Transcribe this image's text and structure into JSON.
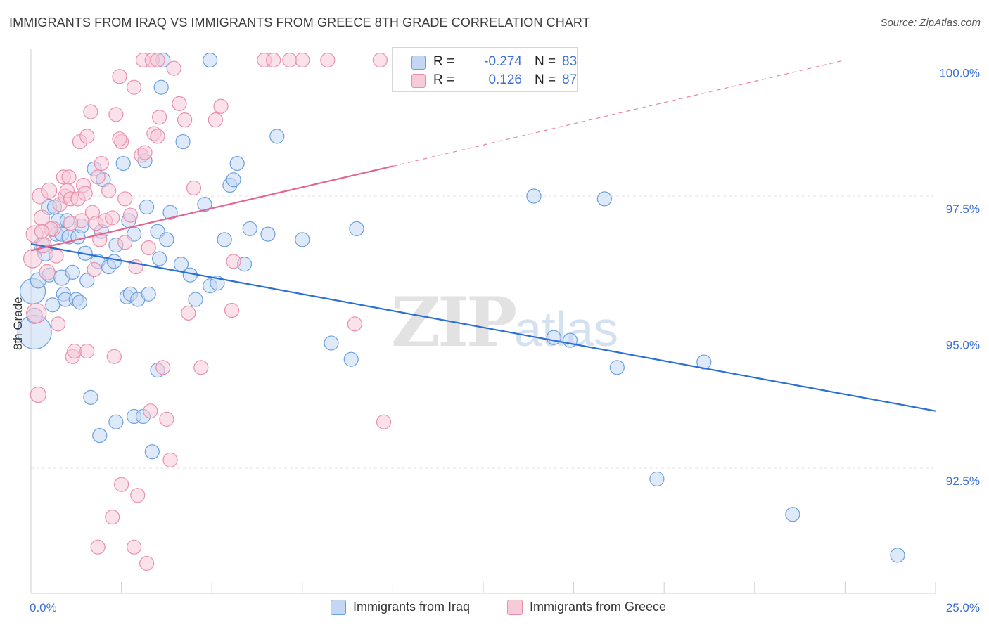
{
  "title": "IMMIGRANTS FROM IRAQ VS IMMIGRANTS FROM GREECE 8TH GRADE CORRELATION CHART",
  "source": "Source: ZipAtlas.com",
  "watermark": {
    "zip": "ZIP",
    "atlas": "atlas"
  },
  "colors": {
    "iraq_fill": "#c3d7f5",
    "iraq_stroke": "#6c9fe0",
    "iraq_line": "#2a6fd4",
    "greece_fill": "#f8c9d7",
    "greece_stroke": "#ea8fab",
    "greece_line": "#e4648f",
    "tick_text": "#3b6fd6",
    "grid": "#e3e3e3"
  },
  "legend": {
    "rows": [
      {
        "r_label": "R = ",
        "r_value": "-0.274",
        "n_label": "N = ",
        "n_value": "83"
      },
      {
        "r_label": "R = ",
        "r_value": "0.126",
        "n_label": "N = ",
        "n_value": "87"
      }
    ]
  },
  "chart_data": {
    "type": "scatter",
    "title": "IMMIGRANTS FROM IRAQ VS IMMIGRANTS FROM GREECE 8TH GRADE CORRELATION CHART",
    "xlabel": "",
    "ylabel": "8th Grade",
    "xlim": [
      0,
      25
    ],
    "ylim": [
      90.2,
      100.2
    ],
    "x_tick_labels": {
      "0": "0.0%",
      "25": "25.0%"
    },
    "x_minor_ticks": [
      0,
      2.5,
      5,
      7.5,
      10,
      12.5,
      15,
      17.5,
      20,
      22.5,
      25
    ],
    "y_ticks": [
      92.5,
      95.0,
      97.5,
      100.0
    ],
    "y_tick_labels": [
      "92.5%",
      "95.0%",
      "97.5%",
      "100.0%"
    ],
    "grid": true,
    "legend_position": "top-center",
    "series": [
      {
        "name": "Immigrants from Iraq",
        "trend": {
          "x": [
            0,
            25
          ],
          "y": [
            96.62,
            93.55
          ],
          "dashed_extension": false
        },
        "points": [
          [
            0.05,
            95.75,
            18
          ],
          [
            0.1,
            95.0,
            24
          ],
          [
            0.1,
            95.3,
            11
          ],
          [
            0.2,
            95.95,
            11
          ],
          [
            0.3,
            96.6,
            11
          ],
          [
            0.4,
            96.45,
            11
          ],
          [
            0.5,
            97.3,
            11
          ],
          [
            0.5,
            96.05,
            10
          ],
          [
            0.6,
            95.5,
            10
          ],
          [
            0.65,
            97.3,
            10
          ],
          [
            0.7,
            96.8,
            10
          ],
          [
            0.75,
            97.05,
            10
          ],
          [
            0.85,
            96.0,
            11
          ],
          [
            0.85,
            96.8,
            10
          ],
          [
            0.9,
            95.7,
            10
          ],
          [
            0.95,
            95.6,
            10
          ],
          [
            1.0,
            97.05,
            10
          ],
          [
            1.05,
            96.75,
            10
          ],
          [
            1.15,
            96.1,
            10
          ],
          [
            1.25,
            95.6,
            10
          ],
          [
            1.3,
            96.75,
            10
          ],
          [
            1.35,
            95.55,
            10
          ],
          [
            1.4,
            96.95,
            10
          ],
          [
            1.5,
            96.45,
            10
          ],
          [
            1.55,
            95.95,
            10
          ],
          [
            1.75,
            98.0,
            10
          ],
          [
            1.85,
            96.3,
            10
          ],
          [
            1.95,
            96.85,
            10
          ],
          [
            2.0,
            97.8,
            10
          ],
          [
            2.15,
            96.2,
            10
          ],
          [
            2.3,
            96.3,
            10
          ],
          [
            2.35,
            96.6,
            10
          ],
          [
            2.55,
            98.1,
            10
          ],
          [
            2.65,
            95.65,
            10
          ],
          [
            2.7,
            97.05,
            10
          ],
          [
            2.75,
            95.7,
            10
          ],
          [
            2.85,
            96.8,
            10
          ],
          [
            2.95,
            95.6,
            10
          ],
          [
            3.15,
            98.15,
            10
          ],
          [
            3.2,
            97.3,
            10
          ],
          [
            3.25,
            95.7,
            10
          ],
          [
            3.5,
            96.85,
            10
          ],
          [
            3.55,
            96.35,
            10
          ],
          [
            3.75,
            96.7,
            10
          ],
          [
            3.85,
            97.2,
            10
          ],
          [
            4.15,
            96.25,
            10
          ],
          [
            4.2,
            98.5,
            10
          ],
          [
            4.4,
            96.05,
            10
          ],
          [
            4.55,
            95.6,
            10
          ],
          [
            4.8,
            97.35,
            10
          ],
          [
            4.95,
            95.85,
            10
          ],
          [
            5.15,
            95.9,
            10
          ],
          [
            5.35,
            96.7,
            10
          ],
          [
            5.5,
            97.7,
            10
          ],
          [
            5.6,
            97.8,
            10
          ],
          [
            5.7,
            98.1,
            10
          ],
          [
            5.9,
            96.25,
            10
          ],
          [
            6.05,
            96.9,
            10
          ],
          [
            6.55,
            96.8,
            10
          ],
          [
            6.8,
            98.6,
            10
          ],
          [
            7.5,
            96.7,
            10
          ],
          [
            8.3,
            94.8,
            10
          ],
          [
            8.85,
            94.5,
            10
          ],
          [
            9.0,
            96.9,
            10
          ],
          [
            13.9,
            97.5,
            10
          ],
          [
            14.45,
            94.9,
            10
          ],
          [
            14.9,
            94.85,
            10
          ],
          [
            15.85,
            97.45,
            10
          ],
          [
            16.2,
            94.35,
            10
          ],
          [
            17.3,
            92.3,
            10
          ],
          [
            18.6,
            94.45,
            10
          ],
          [
            21.05,
            91.65,
            10
          ],
          [
            23.95,
            90.9,
            10
          ],
          [
            1.65,
            93.8,
            10
          ],
          [
            1.9,
            93.1,
            10
          ],
          [
            2.35,
            93.35,
            10
          ],
          [
            2.85,
            93.45,
            10
          ],
          [
            3.1,
            93.45,
            10
          ],
          [
            3.35,
            92.8,
            10
          ],
          [
            3.5,
            94.3,
            10
          ],
          [
            3.65,
            100.0,
            10
          ],
          [
            3.6,
            99.5,
            10
          ],
          [
            4.95,
            100.0,
            10
          ]
        ]
      },
      {
        "name": "Immigrants from Greece",
        "trend": {
          "x": [
            0,
            10.0
          ],
          "y": [
            96.5,
            98.05
          ],
          "dashed_extension": {
            "x": [
              10.0,
              22.5
            ],
            "y": [
              98.05,
              100.0
            ]
          }
        },
        "points": [
          [
            0.05,
            96.35,
            13
          ],
          [
            0.1,
            96.8,
            12
          ],
          [
            0.15,
            95.35,
            14
          ],
          [
            0.2,
            93.85,
            11
          ],
          [
            0.25,
            97.5,
            11
          ],
          [
            0.3,
            97.1,
            11
          ],
          [
            0.35,
            96.6,
            11
          ],
          [
            0.45,
            96.1,
            11
          ],
          [
            0.5,
            97.6,
            11
          ],
          [
            0.6,
            96.9,
            11
          ],
          [
            0.7,
            96.4,
            10
          ],
          [
            0.75,
            95.15,
            10
          ],
          [
            0.8,
            97.35,
            10
          ],
          [
            0.9,
            97.85,
            10
          ],
          [
            0.95,
            97.5,
            10
          ],
          [
            1.0,
            97.6,
            10
          ],
          [
            1.05,
            97.85,
            10
          ],
          [
            1.1,
            97.45,
            10
          ],
          [
            1.15,
            94.55,
            10
          ],
          [
            1.2,
            94.65,
            10
          ],
          [
            1.3,
            97.45,
            10
          ],
          [
            1.35,
            98.5,
            10
          ],
          [
            1.4,
            97.05,
            10
          ],
          [
            1.45,
            97.7,
            10
          ],
          [
            1.5,
            97.55,
            10
          ],
          [
            1.55,
            94.65,
            10
          ],
          [
            1.65,
            99.05,
            10
          ],
          [
            1.7,
            97.2,
            10
          ],
          [
            1.75,
            96.15,
            10
          ],
          [
            1.8,
            97.0,
            10
          ],
          [
            1.85,
            97.85,
            10
          ],
          [
            1.9,
            96.7,
            10
          ],
          [
            1.95,
            98.1,
            10
          ],
          [
            2.05,
            97.05,
            10
          ],
          [
            2.15,
            97.6,
            10
          ],
          [
            2.25,
            97.1,
            10
          ],
          [
            2.3,
            94.55,
            10
          ],
          [
            2.35,
            99.0,
            10
          ],
          [
            2.45,
            99.7,
            10
          ],
          [
            2.5,
            98.5,
            10
          ],
          [
            2.6,
            97.45,
            10
          ],
          [
            2.75,
            97.15,
            10
          ],
          [
            2.85,
            99.5,
            10
          ],
          [
            2.9,
            96.2,
            10
          ],
          [
            2.95,
            92.0,
            10
          ],
          [
            3.05,
            98.25,
            10
          ],
          [
            3.15,
            98.3,
            10
          ],
          [
            3.25,
            96.55,
            10
          ],
          [
            3.3,
            93.55,
            10
          ],
          [
            3.4,
            98.65,
            10
          ],
          [
            3.5,
            98.6,
            10
          ],
          [
            3.55,
            98.95,
            10
          ],
          [
            3.65,
            94.35,
            10
          ],
          [
            3.75,
            93.4,
            10
          ],
          [
            3.85,
            92.65,
            10
          ],
          [
            3.95,
            99.85,
            10
          ],
          [
            4.1,
            99.2,
            10
          ],
          [
            4.25,
            98.9,
            10
          ],
          [
            4.35,
            95.35,
            10
          ],
          [
            4.5,
            97.65,
            10
          ],
          [
            4.7,
            94.35,
            10
          ],
          [
            5.1,
            98.9,
            10
          ],
          [
            5.25,
            99.15,
            10
          ],
          [
            5.55,
            95.4,
            10
          ],
          [
            5.6,
            96.3,
            10
          ],
          [
            6.45,
            100.0,
            10
          ],
          [
            6.7,
            100.0,
            10
          ],
          [
            7.15,
            100.0,
            10
          ],
          [
            7.5,
            100.0,
            10
          ],
          [
            8.2,
            100.0,
            10
          ],
          [
            8.95,
            95.15,
            10
          ],
          [
            9.65,
            100.0,
            10
          ],
          [
            9.75,
            93.35,
            10
          ],
          [
            2.5,
            92.2,
            10
          ],
          [
            2.25,
            91.6,
            10
          ],
          [
            1.85,
            91.05,
            10
          ],
          [
            2.85,
            91.05,
            10
          ],
          [
            3.2,
            90.75,
            10
          ],
          [
            3.1,
            100.0,
            10
          ],
          [
            3.35,
            100.0,
            10
          ],
          [
            3.5,
            100.0,
            10
          ],
          [
            2.45,
            98.55,
            10
          ],
          [
            1.55,
            98.6,
            10
          ],
          [
            0.55,
            96.9,
            10
          ],
          [
            0.3,
            96.85,
            10
          ],
          [
            1.1,
            97.0,
            10
          ],
          [
            2.6,
            96.65,
            10
          ]
        ]
      }
    ]
  },
  "bottom_legend": [
    {
      "label": "Immigrants from Iraq"
    },
    {
      "label": "Immigrants from Greece"
    }
  ]
}
